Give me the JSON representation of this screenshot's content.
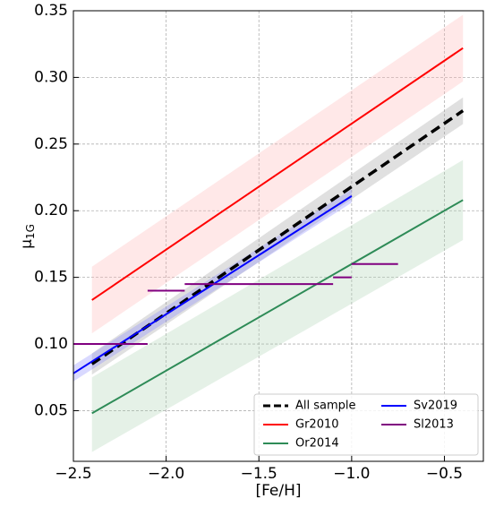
{
  "chart_data": {
    "type": "line",
    "xlabel": "[Fe/H]",
    "ylabel": "μ",
    "ylabel_sub": "1G",
    "xlim": [
      -2.5,
      -0.29
    ],
    "ylim": [
      0.012,
      0.35
    ],
    "xticks": [
      {
        "value": -2.5,
        "label": "−2.5"
      },
      {
        "value": -2.0,
        "label": "−2.0"
      },
      {
        "value": -1.5,
        "label": "−1.5"
      },
      {
        "value": -1.0,
        "label": "−1.0"
      },
      {
        "value": -0.5,
        "label": "−0.5"
      }
    ],
    "yticks": [
      0.05,
      {
        "value": 0.1,
        "label": "0.10"
      },
      0.15,
      {
        "value": 0.2,
        "label": "0.20"
      },
      0.25,
      {
        "value": 0.3,
        "label": "0.30"
      },
      0.35
    ],
    "grid": true,
    "legend_loc": "lower right",
    "series": [
      {
        "name": "All sample",
        "color": "#000000",
        "dashed": true,
        "x": [
          -2.4,
          -0.4
        ],
        "values": [
          0.085,
          0.275
        ],
        "band": {
          "color": "#999999",
          "lower": [
            0.077,
            0.265
          ],
          "upper": [
            0.093,
            0.285
          ]
        }
      },
      {
        "name": "Gr2010",
        "color": "#ff0000",
        "x": [
          -2.4,
          -0.4
        ],
        "values": [
          0.133,
          0.322
        ],
        "band": {
          "color": "#ffb3b3",
          "lower": [
            0.108,
            0.297
          ],
          "upper": [
            0.158,
            0.347
          ]
        }
      },
      {
        "name": "Or2014",
        "color": "#2e8b57",
        "x": [
          -2.4,
          -0.4
        ],
        "values": [
          0.048,
          0.208
        ],
        "band": {
          "color": "#a8d0b0",
          "lower": [
            0.019,
            0.178
          ],
          "upper": [
            0.075,
            0.238
          ]
        }
      },
      {
        "name": "Sv2019",
        "color": "#0000ff",
        "x": [
          -2.5,
          -1.0
        ],
        "values": [
          0.078,
          0.211
        ],
        "band": {
          "color": "#8080ff",
          "lower": [
            0.072,
            0.206
          ],
          "upper": [
            0.084,
            0.216
          ]
        }
      },
      {
        "name": "Sl2013",
        "color": "#800080",
        "segments": [
          {
            "x": [
              -2.5,
              -2.1
            ],
            "value": 0.1
          },
          {
            "x": [
              -2.1,
              -1.9
            ],
            "value": 0.14
          },
          {
            "x": [
              -1.9,
              -1.1
            ],
            "value": 0.145
          },
          {
            "x": [
              -1.1,
              -1.0
            ],
            "value": 0.15
          },
          {
            "x": [
              -1.0,
              -0.75
            ],
            "value": 0.16
          }
        ]
      }
    ]
  }
}
